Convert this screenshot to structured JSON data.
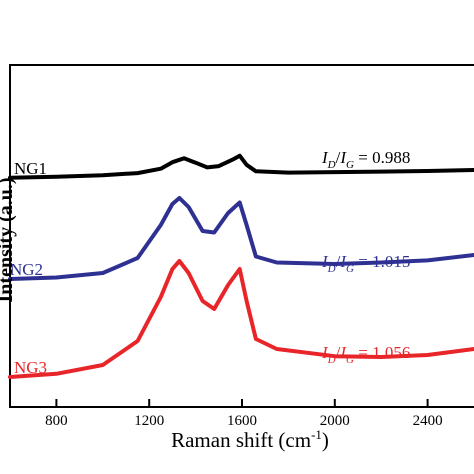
{
  "chart_data": {
    "type": "line",
    "title": "",
    "xlabel": "Raman shift (cm",
    "xlabel_sup": "-1",
    "xlabel_close": ")",
    "ylabel": "Intensity (a.u.)",
    "xlim": [
      600,
      2600
    ],
    "xticks": [
      800,
      1200,
      1600,
      2000,
      2400
    ],
    "grid": false,
    "series": [
      {
        "name": "NG1",
        "color": "#000000",
        "ratio_value": "0.988",
        "points": [
          [
            600,
            0.2
          ],
          [
            800,
            0.24
          ],
          [
            1000,
            0.3
          ],
          [
            1150,
            0.38
          ],
          [
            1250,
            0.55
          ],
          [
            1300,
            0.8
          ],
          [
            1350,
            0.95
          ],
          [
            1400,
            0.78
          ],
          [
            1450,
            0.6
          ],
          [
            1500,
            0.65
          ],
          [
            1560,
            0.9
          ],
          [
            1590,
            1.05
          ],
          [
            1620,
            0.7
          ],
          [
            1660,
            0.45
          ],
          [
            1800,
            0.4
          ],
          [
            2000,
            0.42
          ],
          [
            2200,
            0.44
          ],
          [
            2400,
            0.46
          ],
          [
            2600,
            0.5
          ]
        ]
      },
      {
        "name": "NG2",
        "color": "#2e3192",
        "ratio_value": "1.015",
        "points": [
          [
            600,
            0.0
          ],
          [
            800,
            0.05
          ],
          [
            1000,
            0.2
          ],
          [
            1150,
            0.7
          ],
          [
            1250,
            1.8
          ],
          [
            1300,
            2.5
          ],
          [
            1330,
            2.7
          ],
          [
            1370,
            2.4
          ],
          [
            1430,
            1.6
          ],
          [
            1480,
            1.55
          ],
          [
            1540,
            2.2
          ],
          [
            1590,
            2.55
          ],
          [
            1620,
            1.8
          ],
          [
            1660,
            0.75
          ],
          [
            1750,
            0.55
          ],
          [
            2000,
            0.5
          ],
          [
            2200,
            0.55
          ],
          [
            2400,
            0.62
          ],
          [
            2600,
            0.8
          ]
        ]
      },
      {
        "name": "NG3",
        "color": "#e8262a",
        "ratio_value": "1.056",
        "points": [
          [
            600,
            0.0
          ],
          [
            800,
            0.08
          ],
          [
            1000,
            0.3
          ],
          [
            1150,
            0.9
          ],
          [
            1250,
            2.0
          ],
          [
            1300,
            2.7
          ],
          [
            1330,
            2.9
          ],
          [
            1370,
            2.6
          ],
          [
            1430,
            1.9
          ],
          [
            1480,
            1.7
          ],
          [
            1540,
            2.3
          ],
          [
            1590,
            2.7
          ],
          [
            1620,
            1.9
          ],
          [
            1660,
            0.95
          ],
          [
            1750,
            0.7
          ],
          [
            2000,
            0.52
          ],
          [
            2200,
            0.5
          ],
          [
            2400,
            0.55
          ],
          [
            2600,
            0.7
          ]
        ]
      }
    ]
  }
}
